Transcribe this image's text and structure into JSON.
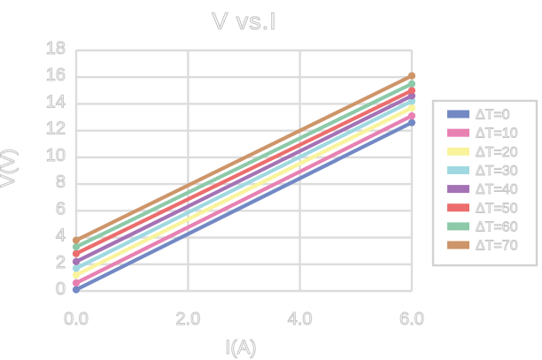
{
  "window": {
    "background": "#ffffff"
  },
  "colors": {
    "grid": "#dcdcdc",
    "text_outline": "#c6c6c6",
    "text_fill": "#ffffff",
    "legend_border": "#d2d2d2"
  },
  "chart_data": {
    "type": "line",
    "title": "V vs.I",
    "xlabel": "I(A)",
    "ylabel": "V(V)",
    "xlim": [
      0,
      6
    ],
    "ylim": [
      0,
      18
    ],
    "grid": true,
    "legend_position": "right",
    "x_tick_values": [
      0,
      2,
      4,
      6
    ],
    "x_tick_labels": [
      "0.0",
      "2.0",
      "4.0",
      "6.0"
    ],
    "y_tick_values": [
      0,
      2,
      4,
      6,
      8,
      10,
      12,
      14,
      16,
      18
    ],
    "y_tick_labels": [
      "0",
      "2",
      "4",
      "6",
      "8",
      "10",
      "12",
      "14",
      "16",
      "18"
    ],
    "x": [
      0,
      6
    ],
    "series": [
      {
        "name": "ΔT=0",
        "color": "#7289c4",
        "values": [
          0.1,
          12.6
        ]
      },
      {
        "name": "ΔT=10",
        "color": "#e880b2",
        "values": [
          0.6,
          13.1
        ]
      },
      {
        "name": "ΔT=20",
        "color": "#f9f39c",
        "values": [
          1.2,
          13.7
        ]
      },
      {
        "name": "ΔT=30",
        "color": "#9fd8e0",
        "values": [
          1.7,
          14.2
        ]
      },
      {
        "name": "ΔT=40",
        "color": "#a472b5",
        "values": [
          2.2,
          14.6
        ]
      },
      {
        "name": "ΔT=50",
        "color": "#ec6d6d",
        "values": [
          2.8,
          15.0
        ]
      },
      {
        "name": "ΔT=60",
        "color": "#8cc9a9",
        "values": [
          3.3,
          15.5
        ]
      },
      {
        "name": "ΔT=70",
        "color": "#cd9569",
        "values": [
          3.8,
          16.1
        ]
      }
    ]
  }
}
